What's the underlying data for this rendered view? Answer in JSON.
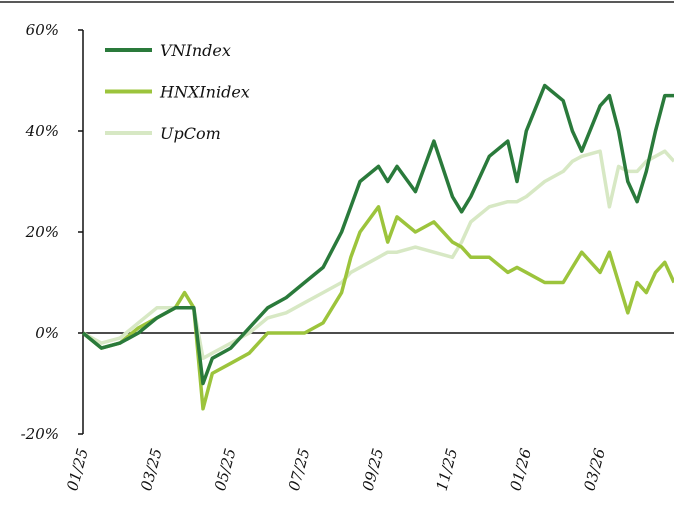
{
  "chart_data": {
    "type": "line",
    "x": [
      0,
      0.5,
      1,
      1.5,
      2,
      2.5,
      2.75,
      3,
      3.25,
      3.5,
      4,
      4.5,
      5,
      5.5,
      6,
      6.5,
      7,
      7.25,
      7.5,
      8,
      8.25,
      8.5,
      9,
      9.5,
      10,
      10.25,
      10.5,
      11,
      11.5,
      11.75,
      12,
      12.5,
      13,
      13.25,
      13.5,
      14,
      14.25,
      14.5,
      14.75,
      15,
      15.25,
      15.5,
      15.75,
      16
    ],
    "series": [
      {
        "name": "VNIndex",
        "color": "#2a7a3b",
        "values": [
          0,
          -3,
          -2,
          0,
          3,
          5,
          5,
          5,
          -10,
          -5,
          -3,
          1,
          5,
          7,
          10,
          13,
          20,
          25,
          30,
          33,
          30,
          33,
          28,
          38,
          27,
          24,
          27,
          35,
          38,
          30,
          40,
          49,
          46,
          40,
          36,
          45,
          47,
          40,
          30,
          26,
          32,
          40,
          47,
          47
        ]
      },
      {
        "name": "HNXInidex",
        "color": "#9cc43c",
        "values": [
          0,
          -3,
          -2,
          1,
          3,
          5,
          8,
          5,
          -15,
          -8,
          -6,
          -4,
          0,
          0,
          0,
          2,
          8,
          15,
          20,
          25,
          18,
          23,
          20,
          22,
          18,
          17,
          15,
          15,
          12,
          13,
          12,
          10,
          10,
          13,
          16,
          12,
          16,
          10,
          4,
          10,
          8,
          12,
          14,
          10
        ]
      },
      {
        "name": "UpCom",
        "color": "#d7e8c4",
        "values": [
          0,
          -2,
          -1,
          2,
          5,
          5,
          5,
          5,
          -5,
          -4,
          -2,
          0,
          3,
          4,
          6,
          8,
          10,
          12,
          13,
          15,
          16,
          16,
          17,
          16,
          15,
          18,
          22,
          25,
          26,
          26,
          27,
          30,
          32,
          34,
          35,
          36,
          25,
          33,
          32,
          32,
          34,
          35,
          36,
          34
        ]
      }
    ],
    "xlim": [
      0,
      16
    ],
    "xticks": [
      {
        "value": 0,
        "label": "01/25"
      },
      {
        "value": 2,
        "label": "03/25"
      },
      {
        "value": 4,
        "label": "05/25"
      },
      {
        "value": 6,
        "label": "07/25"
      },
      {
        "value": 8,
        "label": "09/25"
      },
      {
        "value": 10,
        "label": "11/25"
      },
      {
        "value": 12,
        "label": "01/26"
      },
      {
        "value": 14,
        "label": "03/26"
      }
    ],
    "ylim": [
      -20,
      60
    ],
    "yticks": [
      {
        "value": -20,
        "label": "-20%"
      },
      {
        "value": 0,
        "label": "0%"
      },
      {
        "value": 20,
        "label": "20%"
      },
      {
        "value": 40,
        "label": "40%"
      },
      {
        "value": 60,
        "label": "60%"
      }
    ],
    "legend": "top-left"
  }
}
